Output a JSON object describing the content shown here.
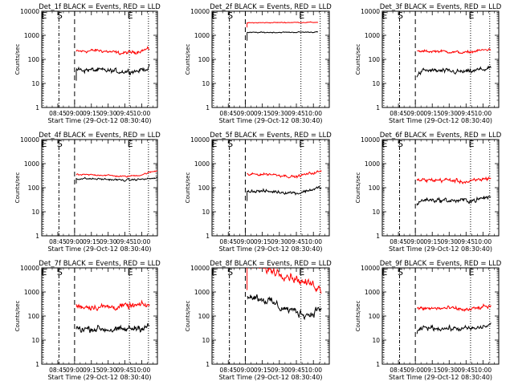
{
  "chart_data": {
    "type": "line",
    "shared": {
      "xlabel": "Start Time (29-Oct-12 08:30:40)",
      "ylabel": "Counts/sec",
      "y_scale": "log",
      "ylim": [
        1,
        10000
      ],
      "ytick_labels": [
        "1",
        "10",
        "100",
        "1000",
        "10000"
      ],
      "xtick_labels": [
        "08:45",
        "09:00",
        "09:15",
        "09:30",
        "09:45",
        "10:00"
      ],
      "xtick_minutes": [
        45,
        60,
        75,
        90,
        105,
        120
      ],
      "xlim_minutes": [
        30.67,
        134
      ],
      "series_colors": [
        "#000000",
        "#ff0000"
      ],
      "marker_styles": [
        "dotted",
        "dashdot",
        "dashed",
        "dotted",
        "dotted"
      ],
      "marker_times": [
        32,
        46,
        60,
        109,
        126
      ],
      "marker_labels": [
        {
          "text": "E",
          "t": 32
        },
        {
          "text": "S",
          "t": 46
        },
        {
          "text": "E",
          "t": 109
        }
      ]
    },
    "panels": [
      {
        "title": "Det_1f BLACK = Events, RED = LLD",
        "t_start": 61.5,
        "t_end": 127,
        "black": {
          "base": 38,
          "profile": [
            [
              0,
              1.0
            ],
            [
              0.3,
              0.92
            ],
            [
              0.6,
              0.82
            ],
            [
              0.85,
              0.88
            ],
            [
              1,
              1.2
            ]
          ],
          "noise": 0.07
        },
        "red": {
          "base": 210,
          "profile": [
            [
              0,
              1.0
            ],
            [
              0.3,
              1.12
            ],
            [
              0.6,
              0.85
            ],
            [
              0.8,
              0.95
            ],
            [
              1,
              1.3
            ]
          ],
          "noise": 0.05
        },
        "drop_black": 13,
        "drop_red": null
      },
      {
        "title": "Det_2f BLACK = Events, RED = LLD",
        "t_start": 61.5,
        "t_end": 124,
        "black": {
          "base": 1300,
          "profile": [
            [
              0,
              1.0
            ],
            [
              0.5,
              1.02
            ],
            [
              1,
              1.05
            ]
          ],
          "noise": 0.015
        },
        "red": {
          "base": 3300,
          "profile": [
            [
              0,
              1.0
            ],
            [
              0.5,
              1.03
            ],
            [
              1,
              1.05
            ]
          ],
          "noise": 0.012
        },
        "drop_black": 600,
        "drop_red": 2100
      },
      {
        "title": "Det_3f BLACK = Events, RED = LLD",
        "t_start": 61.5,
        "t_end": 127,
        "black": {
          "base": 35,
          "profile": [
            [
              0,
              0.6
            ],
            [
              0.1,
              1.0
            ],
            [
              0.4,
              0.9
            ],
            [
              0.7,
              0.85
            ],
            [
              1,
              1.25
            ]
          ],
          "noise": 0.07
        },
        "red": {
          "base": 220,
          "profile": [
            [
              0,
              0.95
            ],
            [
              0.3,
              1.0
            ],
            [
              0.65,
              0.85
            ],
            [
              1,
              1.2
            ]
          ],
          "noise": 0.04
        },
        "drop_black": 18,
        "drop_red": null
      },
      {
        "title": "Det_4f BLACK = Events, RED = LLD",
        "t_start": 61.5,
        "t_end": 134,
        "black": {
          "base": 240,
          "profile": [
            [
              0,
              1.0
            ],
            [
              0.3,
              0.95
            ],
            [
              0.6,
              0.85
            ],
            [
              0.85,
              0.95
            ],
            [
              1,
              1.05
            ]
          ],
          "noise": 0.03
        },
        "red": {
          "base": 340,
          "profile": [
            [
              0,
              1.0
            ],
            [
              0.3,
              1.0
            ],
            [
              0.6,
              0.85
            ],
            [
              0.8,
              1.0
            ],
            [
              1,
              1.5
            ]
          ],
          "noise": 0.025
        },
        "drop_black": 150,
        "drop_red": null
      },
      {
        "title": "Det_5f BLACK = Events, RED = LLD",
        "t_start": 61.5,
        "t_end": 127,
        "black": {
          "base": 75,
          "profile": [
            [
              0,
              1.0
            ],
            [
              0.4,
              0.9
            ],
            [
              0.7,
              0.8
            ],
            [
              1,
              1.35
            ]
          ],
          "noise": 0.05
        },
        "red": {
          "base": 350,
          "profile": [
            [
              0,
              1.0
            ],
            [
              0.3,
              1.05
            ],
            [
              0.65,
              0.8
            ],
            [
              1,
              1.35
            ]
          ],
          "noise": 0.04
        },
        "drop_black": 28,
        "drop_red": null
      },
      {
        "title": "Det_6f BLACK = Events, RED = LLD",
        "t_start": 61.5,
        "t_end": 127,
        "black": {
          "base": 32,
          "profile": [
            [
              0,
              0.65
            ],
            [
              0.1,
              1.0
            ],
            [
              0.5,
              0.9
            ],
            [
              0.8,
              0.95
            ],
            [
              1,
              1.35
            ]
          ],
          "noise": 0.07
        },
        "red": {
          "base": 200,
          "profile": [
            [
              0,
              1.0
            ],
            [
              0.4,
              1.05
            ],
            [
              0.7,
              0.85
            ],
            [
              1,
              1.3
            ]
          ],
          "noise": 0.06
        },
        "drop_black": 18,
        "drop_red": null
      },
      {
        "title": "Det_7f BLACK = Events, RED = LLD",
        "t_start": 61.5,
        "t_end": 127,
        "black": {
          "base": 30,
          "profile": [
            [
              0,
              1.0
            ],
            [
              0.3,
              1.0
            ],
            [
              0.6,
              0.85
            ],
            [
              1,
              1.25
            ]
          ],
          "noise": 0.1
        },
        "red": {
          "base": 250,
          "profile": [
            [
              0,
              1.0
            ],
            [
              0.5,
              0.95
            ],
            [
              1,
              1.15
            ]
          ],
          "noise": 0.09
        },
        "drop_black": null,
        "drop_red": null
      },
      {
        "title": "Det_8f BLACK = Events, RED = LLD",
        "t_start": 61.5,
        "t_end": 127,
        "black": {
          "base": 750,
          "profile": [
            [
              0,
              1.0
            ],
            [
              0.2,
              0.7
            ],
            [
              0.45,
              0.3
            ],
            [
              0.7,
              0.18
            ],
            [
              0.85,
              0.15
            ],
            [
              1,
              0.3
            ]
          ],
          "noise": 0.12
        },
        "red": {
          "base": 10000,
          "profile": [
            [
              0,
              1.4
            ],
            [
              0.25,
              0.9
            ],
            [
              0.5,
              0.55
            ],
            [
              0.75,
              0.25
            ],
            [
              0.9,
              0.2
            ],
            [
              1,
              0.12
            ]
          ],
          "noise": 0.12
        },
        "drop_black": null,
        "drop_red": 1200
      },
      {
        "title": "Det_9f BLACK = Events, RED = LLD",
        "t_start": 61.5,
        "t_end": 127,
        "black": {
          "base": 33,
          "profile": [
            [
              0,
              0.6
            ],
            [
              0.1,
              1.0
            ],
            [
              0.5,
              0.9
            ],
            [
              0.8,
              0.9
            ],
            [
              1,
              1.3
            ]
          ],
          "noise": 0.07
        },
        "red": {
          "base": 200,
          "profile": [
            [
              0,
              1.0
            ],
            [
              0.4,
              1.05
            ],
            [
              0.7,
              0.9
            ],
            [
              1,
              1.3
            ]
          ],
          "noise": 0.06
        },
        "drop_black": 18,
        "drop_red": null
      }
    ]
  }
}
